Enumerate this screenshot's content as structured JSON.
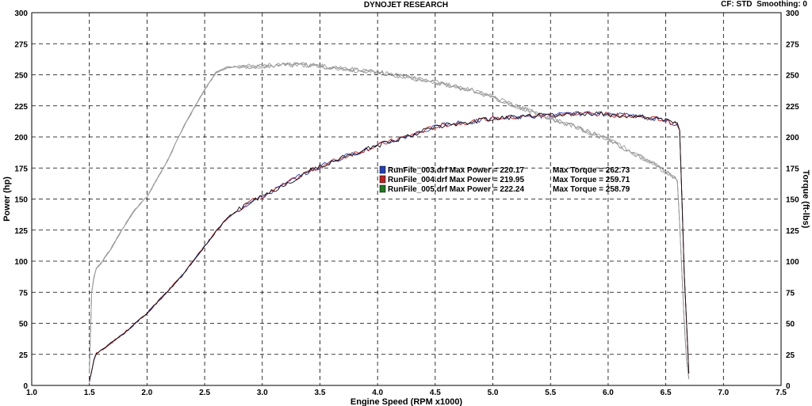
{
  "header": {
    "title": "DYNOJET RESEARCH",
    "cf_label": "CF: STD",
    "smoothing_label": "Smoothing: 0"
  },
  "chart_data": {
    "type": "line",
    "title": "DYNOJET RESEARCH",
    "xlabel": "Engine Speed (RPM x1000)",
    "ylabel": "Power (hp)",
    "y2label": "Torque (ft-lbs)",
    "xlim": [
      1.0,
      7.5
    ],
    "ylim": [
      0,
      300
    ],
    "y2lim": [
      0,
      300
    ],
    "xticks": [
      "1.0",
      "1.5",
      "2.0",
      "2.5",
      "3.0",
      "3.5",
      "4.0",
      "4.5",
      "5.0",
      "5.5",
      "6.0",
      "6.5",
      "7.0",
      "7.5"
    ],
    "yticks": [
      "0",
      "25",
      "50",
      "75",
      "100",
      "125",
      "150",
      "175",
      "200",
      "225",
      "250",
      "275",
      "300"
    ],
    "grid": true,
    "legend": [
      {
        "run": "RunFile_003.drf",
        "power_label": "Max Power = 220.17",
        "torque_label": "Max Torque = 262.73",
        "color": "#1f3fbf"
      },
      {
        "run": "RunFile_004.drf",
        "power_label": "Max Power = 219.95",
        "torque_label": "Max Torque = 259.71",
        "color": "#c02020"
      },
      {
        "run": "RunFile_005.drf",
        "power_label": "Max Power = 222.24",
        "torque_label": "Max Torque = 258.79",
        "color": "#1a7a1a"
      }
    ],
    "power_x": [
      1.5,
      1.55,
      1.6,
      1.7,
      1.8,
      1.9,
      2.0,
      2.1,
      2.2,
      2.3,
      2.4,
      2.5,
      2.6,
      2.7,
      2.8,
      2.9,
      3.0,
      3.2,
      3.4,
      3.6,
      3.8,
      4.0,
      4.2,
      4.4,
      4.5,
      4.6,
      4.8,
      5.0,
      5.2,
      5.4,
      5.6,
      5.8,
      6.0,
      6.2,
      6.4,
      6.5,
      6.6,
      6.62,
      6.64,
      6.66,
      6.68,
      6.7
    ],
    "power_y": [
      3,
      25,
      28,
      35,
      42,
      50,
      58,
      68,
      78,
      88,
      100,
      112,
      124,
      135,
      142,
      148,
      152,
      162,
      172,
      180,
      187,
      193,
      199,
      205,
      208,
      210,
      212,
      215,
      216,
      217,
      218,
      219,
      218,
      217,
      215,
      213,
      210,
      205,
      150,
      90,
      50,
      10
    ],
    "torque_x": [
      1.5,
      1.52,
      1.55,
      1.6,
      1.7,
      1.8,
      1.9,
      2.0,
      2.1,
      2.2,
      2.3,
      2.4,
      2.5,
      2.6,
      2.7,
      2.8,
      3.0,
      3.2,
      3.4,
      3.6,
      3.8,
      4.0,
      4.2,
      4.4,
      4.6,
      4.8,
      5.0,
      5.2,
      5.4,
      5.6,
      5.8,
      6.0,
      6.2,
      6.4,
      6.5,
      6.6,
      6.62,
      6.64,
      6.66,
      6.68,
      6.7
    ],
    "torque_y": [
      10,
      75,
      93,
      98,
      112,
      128,
      142,
      152,
      168,
      185,
      205,
      222,
      238,
      252,
      256,
      257,
      257,
      258,
      258,
      256,
      254,
      252,
      249,
      246,
      242,
      238,
      232,
      225,
      218,
      212,
      205,
      198,
      188,
      178,
      172,
      165,
      130,
      90,
      50,
      20,
      5
    ],
    "series": [
      {
        "name": "RunFile_003.drf",
        "color": "#1f3fbf",
        "seed": 3
      },
      {
        "name": "RunFile_004.drf",
        "color": "#c02020",
        "seed": 7
      },
      {
        "name": "RunFile_005.drf",
        "color": "#1a7a1a",
        "seed": 11
      }
    ]
  }
}
